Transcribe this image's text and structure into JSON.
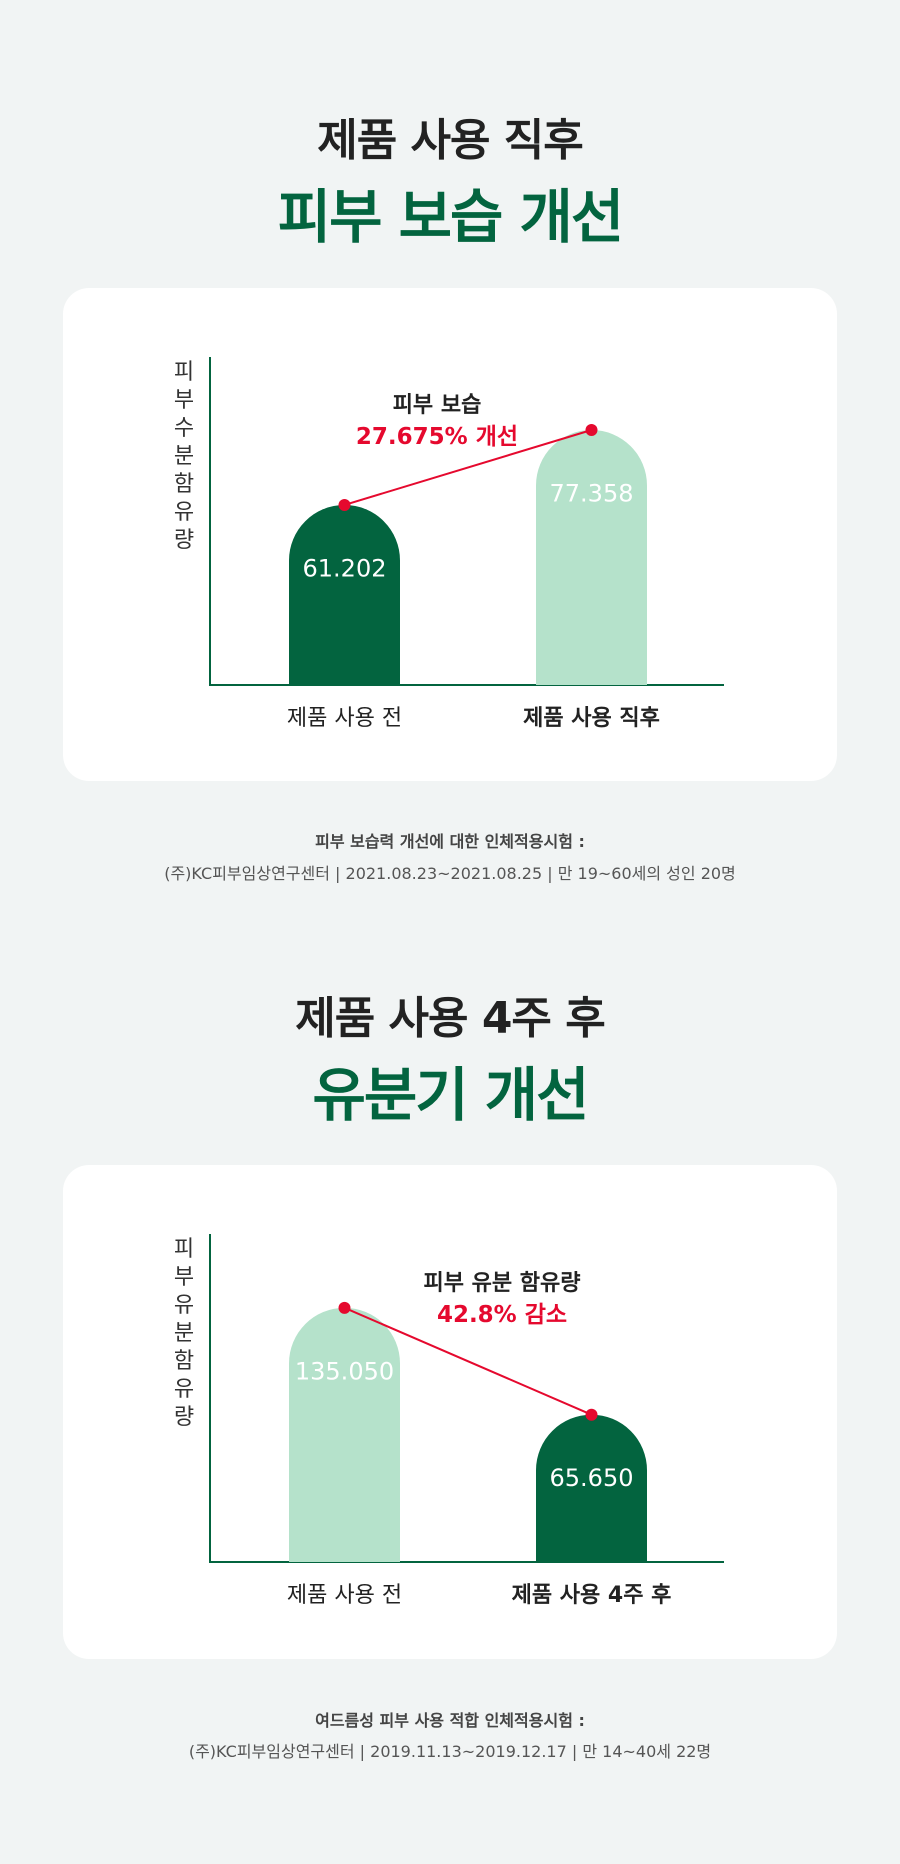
{
  "sections": [
    {
      "title": "제품 사용 직후",
      "headline": "피부 보습 개선",
      "footnote_title": "피부 보습력 개선에 대한 인체적용시험 :",
      "footnote_detail": "(주)KC피부임상연구센터 | 2021.08.23~2021.08.25 | 만 19~60세의 성인 20명"
    },
    {
      "title": "제품 사용 4주 후",
      "headline": "유분기 개선",
      "footnote_title": "여드름성 피부 사용 적합 인체적용시험 :",
      "footnote_detail": "(주)KC피부임상연구센터 | 2019.11.13~2019.12.17 | 만 14~40세 22명"
    }
  ],
  "colors": {
    "dark_green": "#03643f",
    "light_green": "#b5e2cb",
    "red": "#e5092e",
    "background": "#f1f4f4"
  },
  "chart_data": [
    {
      "type": "bar",
      "ylabel": "피부수분함유량",
      "categories": [
        "제품 사용 전",
        "제품 사용 직후"
      ],
      "values": [
        61.202,
        77.358
      ],
      "value_labels": [
        "61.202",
        "77.358"
      ],
      "bar_colors": [
        "#03643f",
        "#b5e2cb"
      ],
      "highlight_category": 1,
      "annotation": {
        "title": "피부 보습",
        "value": "27.675% 개선"
      }
    },
    {
      "type": "bar",
      "ylabel": "피부유분함유량",
      "categories": [
        "제품 사용 전",
        "제품 사용 4주 후"
      ],
      "values": [
        135.05,
        65.65
      ],
      "value_labels": [
        "135.050",
        "65.650"
      ],
      "bar_colors": [
        "#b5e2cb",
        "#03643f"
      ],
      "highlight_category": 1,
      "annotation": {
        "title": "피부 유분 함유량",
        "value": "42.8% 감소"
      }
    }
  ]
}
